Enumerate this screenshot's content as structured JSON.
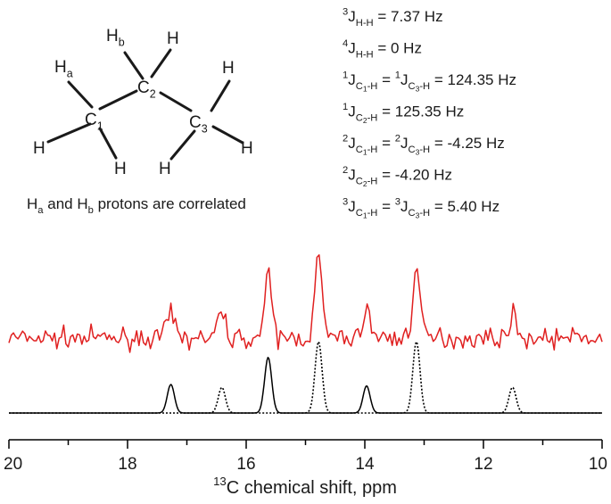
{
  "molecule": {
    "atoms": [
      {
        "id": "C1",
        "symbol": "C",
        "sub": "1"
      },
      {
        "id": "C2",
        "symbol": "C",
        "sub": "2"
      },
      {
        "id": "C3",
        "symbol": "C",
        "sub": "3"
      },
      {
        "id": "Ha",
        "symbol": "H",
        "sub": "a"
      },
      {
        "id": "Hb",
        "symbol": "H",
        "sub": "b"
      },
      {
        "id": "H1",
        "symbol": "H",
        "sub": ""
      },
      {
        "id": "H2",
        "symbol": "H",
        "sub": ""
      },
      {
        "id": "H3",
        "symbol": "H",
        "sub": ""
      },
      {
        "id": "H4",
        "symbol": "H",
        "sub": ""
      },
      {
        "id": "H5",
        "symbol": "H",
        "sub": ""
      },
      {
        "id": "H6",
        "symbol": "H",
        "sub": ""
      }
    ],
    "caption": [
      {
        "t": "H",
        "s": "n"
      },
      {
        "t": "a",
        "s": "sub"
      },
      {
        "t": " and H",
        "s": "n"
      },
      {
        "t": "b",
        "s": "sub"
      },
      {
        "t": " protons are correlated",
        "s": "n"
      }
    ]
  },
  "couplings": [
    [
      {
        "t": "3",
        "s": "sup"
      },
      {
        "t": "J",
        "s": "n"
      },
      {
        "t": "H-H",
        "s": "sub"
      },
      {
        "t": " = 7.37 Hz",
        "s": "n"
      }
    ],
    [
      {
        "t": "4",
        "s": "sup"
      },
      {
        "t": "J",
        "s": "n"
      },
      {
        "t": "H-H",
        "s": "sub"
      },
      {
        "t": " = 0 Hz",
        "s": "n"
      }
    ],
    [
      {
        "t": "1",
        "s": "sup"
      },
      {
        "t": "J",
        "s": "n"
      },
      {
        "t": "C",
        "s": "sub"
      },
      {
        "t": "1",
        "s": "subsub"
      },
      {
        "t": "-H",
        "s": "sub"
      },
      {
        "t": " = ",
        "s": "n"
      },
      {
        "t": "1",
        "s": "sup"
      },
      {
        "t": "J",
        "s": "n"
      },
      {
        "t": "C",
        "s": "sub"
      },
      {
        "t": "3",
        "s": "subsub"
      },
      {
        "t": "-H",
        "s": "sub"
      },
      {
        "t": " = 124.35 Hz",
        "s": "n"
      }
    ],
    [
      {
        "t": "1",
        "s": "sup"
      },
      {
        "t": "J",
        "s": "n"
      },
      {
        "t": "C",
        "s": "sub"
      },
      {
        "t": "2",
        "s": "subsub"
      },
      {
        "t": "-H",
        "s": "sub"
      },
      {
        "t": " = 125.35 Hz",
        "s": "n"
      }
    ],
    [
      {
        "t": "2",
        "s": "sup"
      },
      {
        "t": "J",
        "s": "n"
      },
      {
        "t": "C",
        "s": "sub"
      },
      {
        "t": "1",
        "s": "subsub"
      },
      {
        "t": "-H",
        "s": "sub"
      },
      {
        "t": " = ",
        "s": "n"
      },
      {
        "t": "2",
        "s": "sup"
      },
      {
        "t": "J",
        "s": "n"
      },
      {
        "t": "C",
        "s": "sub"
      },
      {
        "t": "3",
        "s": "subsub"
      },
      {
        "t": "-H",
        "s": "sub"
      },
      {
        "t": " = -4.25 Hz",
        "s": "n"
      }
    ],
    [
      {
        "t": "2",
        "s": "sup"
      },
      {
        "t": "J",
        "s": "n"
      },
      {
        "t": "C",
        "s": "sub"
      },
      {
        "t": "2",
        "s": "subsub"
      },
      {
        "t": "-H",
        "s": "sub"
      },
      {
        "t": " = -4.20 Hz",
        "s": "n"
      }
    ],
    [
      {
        "t": "3",
        "s": "sup"
      },
      {
        "t": "J",
        "s": "n"
      },
      {
        "t": "C",
        "s": "sub"
      },
      {
        "t": "1",
        "s": "subsub"
      },
      {
        "t": "-H",
        "s": "sub"
      },
      {
        "t": " = ",
        "s": "n"
      },
      {
        "t": "3",
        "s": "sup"
      },
      {
        "t": "J",
        "s": "n"
      },
      {
        "t": "C",
        "s": "sub"
      },
      {
        "t": "3",
        "s": "subsub"
      },
      {
        "t": "-H",
        "s": "sub"
      },
      {
        "t": " = 5.40 Hz",
        "s": "n"
      }
    ]
  ],
  "chart_data": {
    "type": "line",
    "xlabel_parts": [
      {
        "t": "13",
        "s": "sup"
      },
      {
        "t": "C chemical shift, ppm",
        "s": "n"
      }
    ],
    "xlim": [
      20,
      10
    ],
    "x_reversed": true,
    "xticks": [
      {
        "v": 20,
        "label": "20"
      },
      {
        "v": 18,
        "label": "18"
      },
      {
        "v": 16,
        "label": "16"
      },
      {
        "v": 14,
        "label": "14"
      },
      {
        "v": 12,
        "label": "12"
      },
      {
        "v": 10,
        "label": "10"
      }
    ],
    "minor_tick_step": 1,
    "y_axis_shown": false,
    "series": [
      {
        "style": "solid",
        "color": "#e02020",
        "noise": 0.14,
        "baseline": 0.9,
        "peaks": [
          {
            "x": 17.27,
            "h": 0.35
          },
          {
            "x": 16.41,
            "h": 0.38
          },
          {
            "x": 15.63,
            "h": 0.85
          },
          {
            "x": 14.78,
            "h": 1.15
          },
          {
            "x": 13.97,
            "h": 0.43
          },
          {
            "x": 13.13,
            "h": 1.0
          },
          {
            "x": 11.51,
            "h": 0.33
          }
        ]
      },
      {
        "style": "solid",
        "color": "#000000",
        "noise": 0,
        "baseline": 0,
        "peaks": [
          {
            "x": 17.27,
            "h": 0.4
          },
          {
            "x": 15.63,
            "h": 0.78
          },
          {
            "x": 13.97,
            "h": 0.38
          }
        ]
      },
      {
        "style": "dotted",
        "color": "#000000",
        "noise": 0,
        "baseline": 0,
        "peaks": [
          {
            "x": 16.41,
            "h": 0.36
          },
          {
            "x": 14.78,
            "h": 1.0
          },
          {
            "x": 13.13,
            "h": 1.0
          },
          {
            "x": 11.51,
            "h": 0.36
          }
        ]
      }
    ]
  }
}
